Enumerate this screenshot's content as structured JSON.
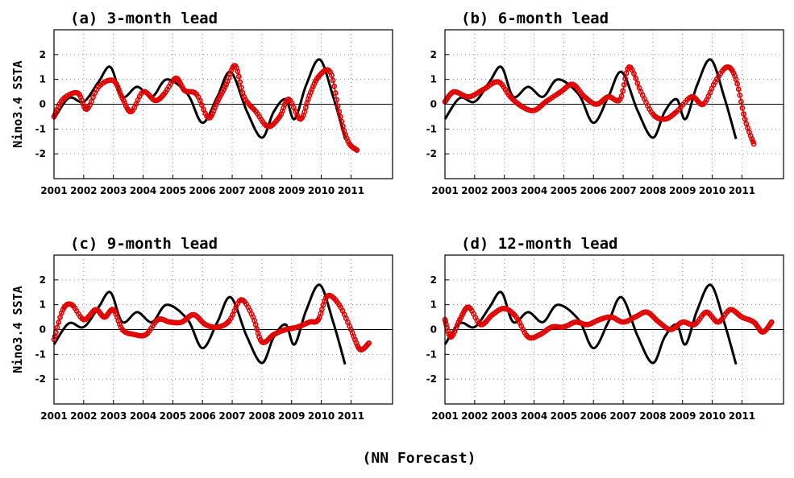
{
  "figure": {
    "footer": "(NN Forecast)"
  },
  "chart_data": [
    {
      "type": "line",
      "title": "(a) 3-month lead",
      "ylabel": "Nino3.4 SSTA",
      "xlim": [
        2001,
        2012.4
      ],
      "ylim": [
        -3,
        3
      ],
      "x_ticks": [
        2001,
        2002,
        2003,
        2004,
        2005,
        2006,
        2007,
        2008,
        2009,
        2010,
        2011
      ],
      "y_ticks": [
        -2,
        -1,
        0,
        1,
        2
      ],
      "series": [
        {
          "style": "solid-black",
          "x": [
            2001,
            2001.5,
            2002,
            2002.5,
            2002.9,
            2003.3,
            2003.8,
            2004.3,
            2004.8,
            2005.5,
            2006,
            2006.5,
            2006.95,
            2007.5,
            2008,
            2008.4,
            2008.8,
            2009.1,
            2009.5,
            2009.95,
            2010.4,
            2010.8
          ],
          "y": [
            -0.6,
            0.25,
            0.1,
            0.9,
            1.5,
            0.3,
            0.7,
            0.3,
            1.0,
            0.4,
            -0.75,
            0.3,
            1.3,
            -0.3,
            -1.35,
            -0.3,
            0.2,
            -0.6,
            0.8,
            1.8,
            0.3,
            -1.4
          ]
        },
        {
          "style": "red-circles",
          "x": [
            2001,
            2001.3,
            2001.8,
            2002.1,
            2002.5,
            2003,
            2003.3,
            2003.6,
            2004.0,
            2004.4,
            2004.7,
            2005.1,
            2005.4,
            2005.8,
            2006.2,
            2006.5,
            2006.8,
            2007.1,
            2007.4,
            2007.8,
            2008.2,
            2008.6,
            2008.9,
            2009.3,
            2009.6,
            2009.9,
            2010.3,
            2010.6,
            2010.9,
            2011.2
          ],
          "y": [
            -0.5,
            0.2,
            0.45,
            -0.2,
            0.7,
            0.95,
            0.25,
            -0.3,
            0.5,
            0.15,
            0.4,
            1.05,
            0.55,
            0.4,
            -0.55,
            0.1,
            0.8,
            1.55,
            0.3,
            -0.3,
            -0.9,
            -0.5,
            0.2,
            -0.6,
            0.35,
            1.1,
            1.3,
            -0.3,
            -1.5,
            -1.85
          ]
        }
      ]
    },
    {
      "type": "line",
      "title": "(b) 6-month lead",
      "ylabel": "",
      "xlim": [
        2001,
        2012.4
      ],
      "ylim": [
        -3,
        3
      ],
      "x_ticks": [
        2001,
        2002,
        2003,
        2004,
        2005,
        2006,
        2007,
        2008,
        2009,
        2010,
        2011
      ],
      "y_ticks": [
        -2,
        -1,
        0,
        1,
        2
      ],
      "series": [
        {
          "style": "solid-black",
          "x": [
            2001,
            2001.5,
            2002,
            2002.5,
            2002.9,
            2003.3,
            2003.8,
            2004.3,
            2004.8,
            2005.5,
            2006,
            2006.5,
            2006.95,
            2007.5,
            2008,
            2008.4,
            2008.8,
            2009.1,
            2009.5,
            2009.95,
            2010.4,
            2010.8
          ],
          "y": [
            -0.6,
            0.25,
            0.1,
            0.9,
            1.5,
            0.3,
            0.7,
            0.3,
            1.0,
            0.4,
            -0.75,
            0.3,
            1.3,
            -0.3,
            -1.35,
            -0.3,
            0.2,
            -0.6,
            0.8,
            1.8,
            0.3,
            -1.4
          ]
        },
        {
          "style": "red-circles",
          "x": [
            2001,
            2001.3,
            2001.8,
            2002.3,
            2002.8,
            2003.2,
            2003.6,
            2004.0,
            2004.4,
            2004.9,
            2005.3,
            2005.7,
            2006.1,
            2006.5,
            2006.9,
            2007.2,
            2007.6,
            2008.0,
            2008.4,
            2008.8,
            2009.3,
            2009.7,
            2010.1,
            2010.5,
            2010.8,
            2011.1,
            2011.4
          ],
          "y": [
            0.1,
            0.5,
            0.3,
            0.6,
            0.9,
            0.3,
            -0.1,
            -0.25,
            0.1,
            0.5,
            0.8,
            0.3,
            0.0,
            0.3,
            0.2,
            1.5,
            0.5,
            -0.4,
            -0.6,
            -0.3,
            0.3,
            0.0,
            0.9,
            1.5,
            1.0,
            -0.6,
            -1.6
          ]
        }
      ]
    },
    {
      "type": "line",
      "title": "(c) 9-month lead",
      "ylabel": "Nino3.4 SSTA",
      "xlim": [
        2001,
        2012.4
      ],
      "ylim": [
        -3,
        3
      ],
      "x_ticks": [
        2001,
        2002,
        2003,
        2004,
        2005,
        2006,
        2007,
        2008,
        2009,
        2010,
        2011
      ],
      "y_ticks": [
        -2,
        -1,
        0,
        1,
        2
      ],
      "series": [
        {
          "style": "solid-black",
          "x": [
            2001,
            2001.5,
            2002,
            2002.5,
            2002.9,
            2003.3,
            2003.8,
            2004.3,
            2004.8,
            2005.5,
            2006,
            2006.5,
            2006.95,
            2007.5,
            2008,
            2008.4,
            2008.8,
            2009.1,
            2009.5,
            2009.95,
            2010.4,
            2010.8
          ],
          "y": [
            -0.6,
            0.25,
            0.1,
            0.9,
            1.5,
            0.3,
            0.7,
            0.3,
            1.0,
            0.4,
            -0.75,
            0.3,
            1.3,
            -0.3,
            -1.35,
            -0.3,
            0.2,
            -0.6,
            0.8,
            1.8,
            0.3,
            -1.4
          ]
        },
        {
          "style": "red-circles",
          "x": [
            2001,
            2001.3,
            2001.6,
            2002.0,
            2002.4,
            2002.7,
            2003.0,
            2003.3,
            2003.7,
            2004.1,
            2004.5,
            2004.9,
            2005.3,
            2005.7,
            2006.1,
            2006.5,
            2006.9,
            2007.3,
            2007.7,
            2008.0,
            2008.4,
            2008.8,
            2009.2,
            2009.6,
            2009.9,
            2010.2,
            2010.6,
            2011.0,
            2011.3,
            2011.6
          ],
          "y": [
            -0.4,
            0.8,
            1.0,
            0.4,
            0.8,
            0.5,
            0.8,
            0.0,
            -0.2,
            -0.2,
            0.4,
            0.3,
            0.3,
            0.6,
            0.2,
            0.1,
            0.35,
            1.2,
            0.5,
            -0.5,
            -0.2,
            0.0,
            0.1,
            0.3,
            0.4,
            1.35,
            1.0,
            0.0,
            -0.8,
            -0.55
          ]
        }
      ]
    },
    {
      "type": "line",
      "title": "(d) 12-month lead",
      "ylabel": "",
      "xlim": [
        2001,
        2012.4
      ],
      "ylim": [
        -3,
        3
      ],
      "x_ticks": [
        2001,
        2002,
        2003,
        2004,
        2005,
        2006,
        2007,
        2008,
        2009,
        2010,
        2011
      ],
      "y_ticks": [
        -2,
        -1,
        0,
        1,
        2
      ],
      "series": [
        {
          "style": "solid-black",
          "x": [
            2001,
            2001.5,
            2002,
            2002.5,
            2002.9,
            2003.3,
            2003.8,
            2004.3,
            2004.8,
            2005.5,
            2006,
            2006.5,
            2006.95,
            2007.5,
            2008,
            2008.4,
            2008.8,
            2009.1,
            2009.5,
            2009.95,
            2010.4,
            2010.8
          ],
          "y": [
            -0.6,
            0.25,
            0.1,
            0.9,
            1.5,
            0.3,
            0.7,
            0.3,
            1.0,
            0.4,
            -0.75,
            0.3,
            1.3,
            -0.3,
            -1.35,
            -0.3,
            0.2,
            -0.6,
            0.8,
            1.8,
            0.3,
            -1.4
          ]
        },
        {
          "style": "red-circles",
          "x": [
            2001,
            2001.2,
            2001.5,
            2001.8,
            2002.2,
            2002.6,
            2003.0,
            2003.4,
            2003.8,
            2004.2,
            2004.6,
            2005.0,
            2005.4,
            2005.8,
            2006.2,
            2006.6,
            2007.0,
            2007.4,
            2007.8,
            2008.2,
            2008.6,
            2009.0,
            2009.4,
            2009.8,
            2010.2,
            2010.6,
            2011.0,
            2011.4,
            2011.7,
            2012.0
          ],
          "y": [
            0.4,
            -0.3,
            0.4,
            0.9,
            0.2,
            0.6,
            0.85,
            0.5,
            -0.3,
            -0.2,
            0.1,
            0.1,
            0.3,
            0.2,
            0.4,
            0.5,
            0.3,
            0.5,
            0.7,
            0.3,
            0.0,
            0.3,
            0.2,
            0.7,
            0.3,
            0.8,
            0.5,
            0.3,
            -0.1,
            0.3
          ]
        }
      ]
    }
  ]
}
